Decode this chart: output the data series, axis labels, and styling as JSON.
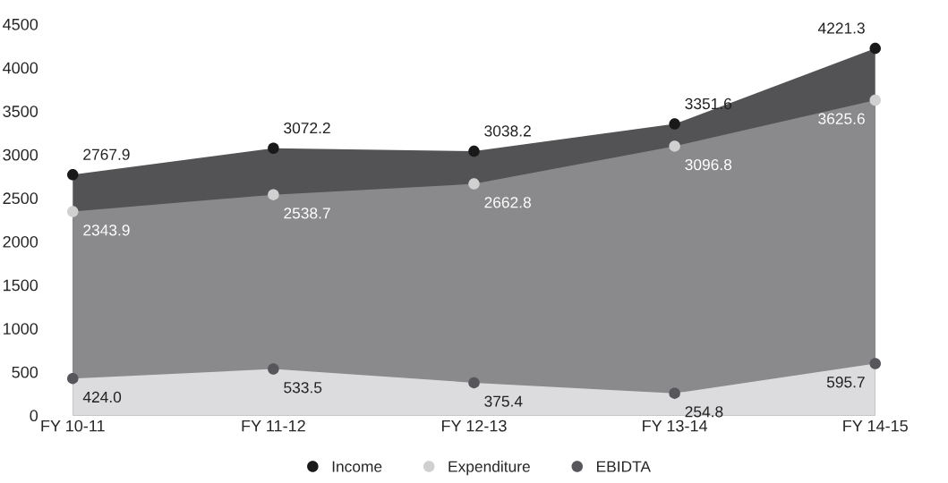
{
  "chart_data": {
    "type": "area",
    "categories": [
      "FY 10-11",
      "FY 11-12",
      "FY 12-13",
      "FY 13-14",
      "FY 14-15"
    ],
    "series": [
      {
        "name": "Income",
        "color": "#535355",
        "values": [
          2767.9,
          3072.2,
          3038.2,
          3351.6,
          4221.3
        ],
        "value_labels": [
          "2767.9",
          "3072.2",
          "3038.2",
          "3351.6",
          "4221.3"
        ]
      },
      {
        "name": "Expenditure",
        "color": "#8a8a8c",
        "values": [
          2343.9,
          2538.7,
          2662.8,
          3096.8,
          3625.6
        ],
        "value_labels": [
          "2343.9",
          "2538.7",
          "2662.8",
          "3096.8",
          "3625.6"
        ]
      },
      {
        "name": "EBIDTA",
        "color": "#dcdcde",
        "values": [
          424,
          533.5,
          375.4,
          254.8,
          595.7
        ],
        "value_labels": [
          "424.0",
          "533.5",
          "375.4",
          "254.8",
          "595.7"
        ]
      }
    ],
    "ylim": [
      0,
      4500
    ],
    "yticks": [
      0,
      500,
      1000,
      1500,
      2000,
      2500,
      3000,
      3500,
      4000,
      4500
    ],
    "marker": "circle",
    "legend": "bottom",
    "grid": false
  }
}
